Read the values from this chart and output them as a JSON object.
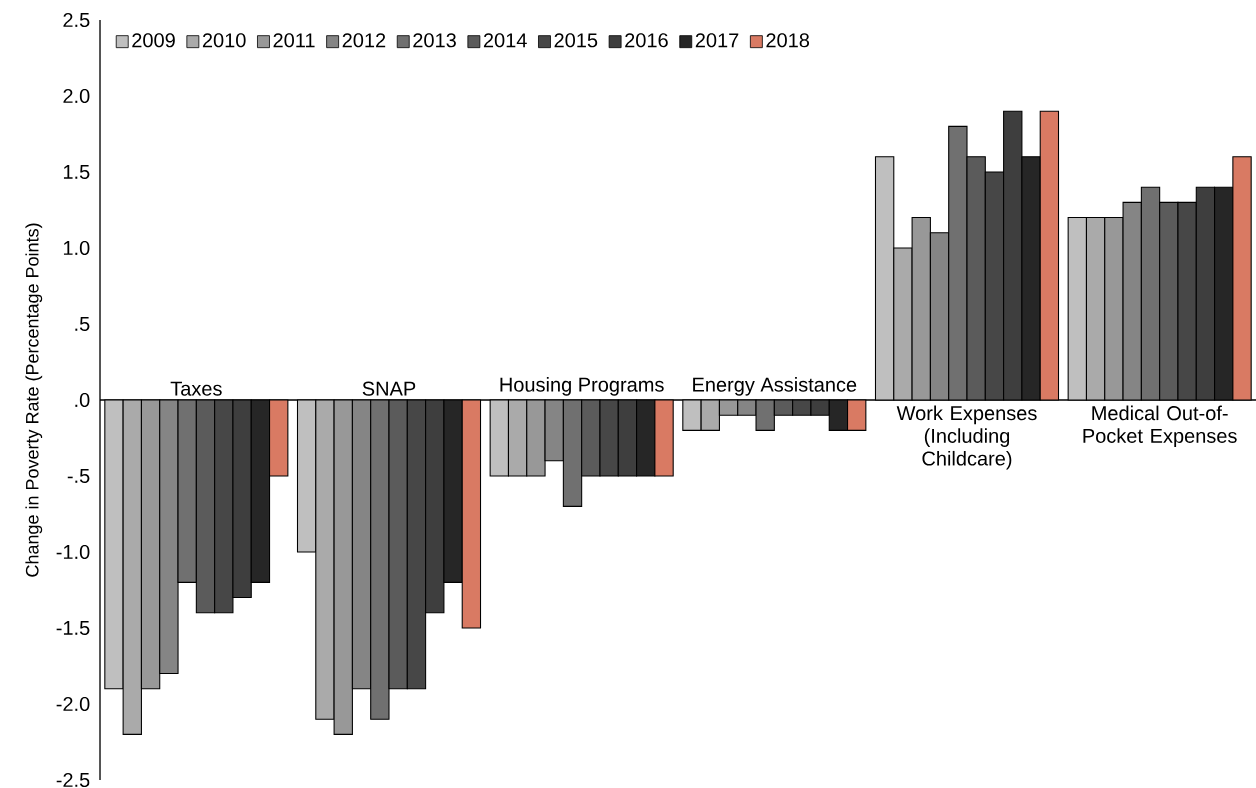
{
  "chart_data": {
    "type": "bar",
    "ylabel": "Change in Poverty Rate (Percentage Points)",
    "categories": [
      "Taxes",
      "SNAP",
      "Housing Programs",
      "Energy Assistance",
      "Work Expenses (Including Childcare)",
      "Medical Out-of-Pocket Expenses"
    ],
    "series": [
      {
        "name": "2009",
        "color": "#bfbfbf",
        "values": [
          -1.9,
          -1.0,
          -0.5,
          -0.2,
          1.6,
          1.2
        ]
      },
      {
        "name": "2010",
        "color": "#aaaaaa",
        "values": [
          -2.2,
          -2.1,
          -0.5,
          -0.2,
          1.0,
          1.2
        ]
      },
      {
        "name": "2011",
        "color": "#989898",
        "values": [
          -1.9,
          -2.2,
          -0.5,
          -0.1,
          1.2,
          1.2
        ]
      },
      {
        "name": "2012",
        "color": "#858585",
        "values": [
          -1.8,
          -1.9,
          -0.4,
          -0.1,
          1.1,
          1.3
        ]
      },
      {
        "name": "2013",
        "color": "#707070",
        "values": [
          -1.2,
          -2.1,
          -0.7,
          -0.2,
          1.8,
          1.4
        ]
      },
      {
        "name": "2014",
        "color": "#5b5b5b",
        "values": [
          -1.4,
          -1.9,
          -0.5,
          -0.1,
          1.6,
          1.3
        ]
      },
      {
        "name": "2015",
        "color": "#474747",
        "values": [
          -1.4,
          -1.9,
          -0.5,
          -0.1,
          1.5,
          1.3
        ]
      },
      {
        "name": "2016",
        "color": "#3e3e3e",
        "values": [
          -1.3,
          -1.4,
          -0.5,
          -0.1,
          1.9,
          1.4
        ]
      },
      {
        "name": "2017",
        "color": "#262626",
        "values": [
          -1.2,
          -1.2,
          -0.5,
          -0.2,
          1.6,
          1.4
        ]
      },
      {
        "name": "2018",
        "color": "#d97a63",
        "values": [
          -0.5,
          -1.5,
          -0.5,
          -0.2,
          1.9,
          1.6
        ]
      }
    ],
    "ylim": [
      -2.5,
      2.5
    ],
    "yticks": [
      {
        "value": -2.5,
        "label": "-2.5"
      },
      {
        "value": -2.0,
        "label": "-2.0"
      },
      {
        "value": -1.5,
        "label": "-1.5"
      },
      {
        "value": -1.0,
        "label": "-1.0"
      },
      {
        "value": -0.5,
        "label": "-.5"
      },
      {
        "value": 0,
        "label": ".0"
      },
      {
        "value": 0.5,
        "label": ".5"
      },
      {
        "value": 1.0,
        "label": "1.0"
      },
      {
        "value": 1.5,
        "label": "1.5"
      },
      {
        "value": 2.0,
        "label": "2.0"
      },
      {
        "value": 2.5,
        "label": "2.5"
      }
    ],
    "grid": false,
    "legend": "top left"
  }
}
